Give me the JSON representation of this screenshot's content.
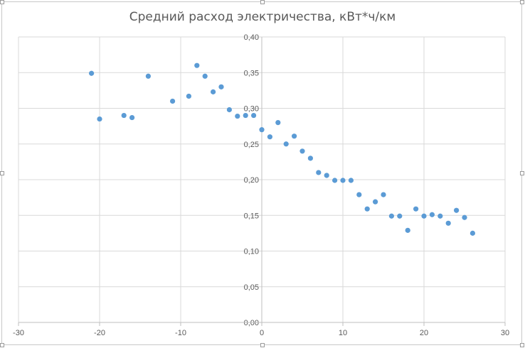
{
  "chart_data": {
    "type": "scatter",
    "title": "Средний расход электричества, кВт*ч/км",
    "xlabel": "",
    "ylabel": "",
    "xlim": [
      -30,
      30
    ],
    "ylim": [
      0,
      0.4
    ],
    "x_ticks": [
      "-30",
      "-20",
      "-10",
      "0",
      "10",
      "20",
      "30"
    ],
    "y_ticks": [
      "0,00",
      "0,05",
      "0,10",
      "0,15",
      "0,20",
      "0,25",
      "0,30",
      "0,35",
      "0,40"
    ],
    "grid": true,
    "legend": "none",
    "marker_color": "#5b9bd5",
    "points": [
      {
        "x": -21,
        "y": 0.349
      },
      {
        "x": -20,
        "y": 0.285
      },
      {
        "x": -17,
        "y": 0.29
      },
      {
        "x": -16,
        "y": 0.287
      },
      {
        "x": -14,
        "y": 0.345
      },
      {
        "x": -11,
        "y": 0.31
      },
      {
        "x": -9,
        "y": 0.317
      },
      {
        "x": -8,
        "y": 0.36
      },
      {
        "x": -7,
        "y": 0.345
      },
      {
        "x": -6,
        "y": 0.323
      },
      {
        "x": -5,
        "y": 0.33
      },
      {
        "x": -4,
        "y": 0.298
      },
      {
        "x": -3,
        "y": 0.289
      },
      {
        "x": -2,
        "y": 0.29
      },
      {
        "x": -1,
        "y": 0.29
      },
      {
        "x": 0,
        "y": 0.27
      },
      {
        "x": 1,
        "y": 0.26
      },
      {
        "x": 2,
        "y": 0.28
      },
      {
        "x": 3,
        "y": 0.25
      },
      {
        "x": 4,
        "y": 0.261
      },
      {
        "x": 5,
        "y": 0.24
      },
      {
        "x": 6,
        "y": 0.23
      },
      {
        "x": 7,
        "y": 0.21
      },
      {
        "x": 8,
        "y": 0.206
      },
      {
        "x": 9,
        "y": 0.199
      },
      {
        "x": 10,
        "y": 0.199
      },
      {
        "x": 11,
        "y": 0.199
      },
      {
        "x": 12,
        "y": 0.179
      },
      {
        "x": 13,
        "y": 0.159
      },
      {
        "x": 14,
        "y": 0.169
      },
      {
        "x": 15,
        "y": 0.179
      },
      {
        "x": 16,
        "y": 0.149
      },
      {
        "x": 17,
        "y": 0.149
      },
      {
        "x": 18,
        "y": 0.129
      },
      {
        "x": 19,
        "y": 0.159
      },
      {
        "x": 20,
        "y": 0.149
      },
      {
        "x": 21,
        "y": 0.151
      },
      {
        "x": 22,
        "y": 0.149
      },
      {
        "x": 23,
        "y": 0.139
      },
      {
        "x": 24,
        "y": 0.157
      },
      {
        "x": 25,
        "y": 0.147
      },
      {
        "x": 26,
        "y": 0.125
      }
    ]
  }
}
